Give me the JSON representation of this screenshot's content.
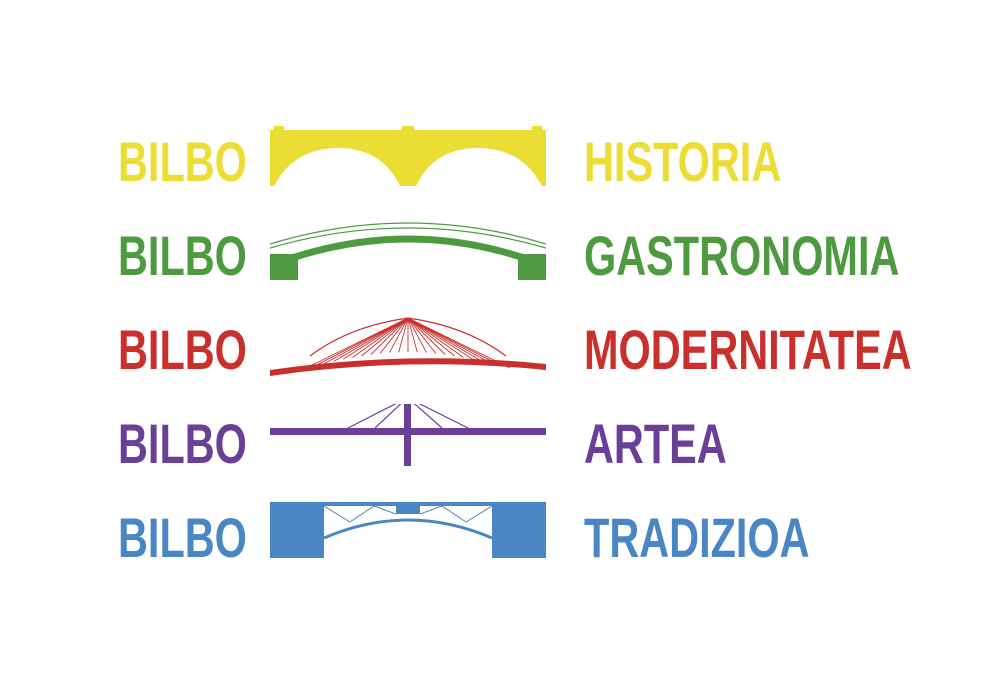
{
  "rows": [
    {
      "city": "BILBO",
      "theme": "HISTORIA",
      "color": "#ECDD35",
      "bridge_icon": "stone-arch-bridge-icon"
    },
    {
      "city": "BILBO",
      "theme": "GASTRONOMIA",
      "color": "#4E9A41",
      "bridge_icon": "arch-bridge-icon"
    },
    {
      "city": "BILBO",
      "theme": "MODERNITATEA",
      "color": "#C9302C",
      "bridge_icon": "cable-stayed-bridge-icon"
    },
    {
      "city": "BILBO",
      "theme": "ARTEA",
      "color": "#6A3F98",
      "bridge_icon": "pylon-bridge-icon"
    },
    {
      "city": "BILBO",
      "theme": "TRADIZIOA",
      "color": "#4A86C3",
      "bridge_icon": "truss-arch-bridge-icon"
    }
  ]
}
